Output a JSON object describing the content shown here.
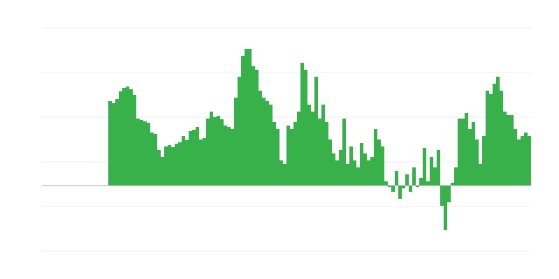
{
  "chart_data": {
    "type": "bar",
    "color": "#39b14a",
    "values": [
      null,
      null,
      null,
      null,
      null,
      null,
      null,
      null,
      null,
      null,
      null,
      null,
      null,
      null,
      null,
      null,
      null,
      null,
      null,
      121,
      118,
      124,
      135,
      140,
      142,
      138,
      130,
      96,
      94,
      92,
      90,
      76,
      74,
      51,
      41,
      56,
      58,
      55,
      60,
      62,
      71,
      65,
      78,
      80,
      84,
      66,
      68,
      96,
      106,
      98,
      100,
      95,
      86,
      84,
      81,
      126,
      156,
      186,
      196,
      196,
      171,
      166,
      136,
      126,
      121,
      116,
      91,
      81,
      36,
      31,
      86,
      81,
      91,
      106,
      176,
      166,
      116,
      106,
      156,
      96,
      116,
      91,
      66,
      46,
      36,
      51,
      96,
      31,
      56,
      36,
      26,
      61,
      46,
      36,
      41,
      81,
      66,
      56,
      6,
      -2,
      -9,
      21,
      -19,
      -4,
      16,
      -9,
      26,
      -2,
      11,
      54,
      6,
      41,
      26,
      51,
      -29,
      -64,
      -24,
      4,
      26,
      96,
      96,
      104,
      81,
      91,
      66,
      31,
      71,
      136,
      131,
      146,
      156,
      136,
      106,
      101,
      101,
      81,
      66,
      71,
      76,
      71
    ],
    "ylim": [
      -94,
      226
    ],
    "yticks": [
      -94,
      -30,
      34,
      98,
      162,
      226
    ],
    "grid": true
  }
}
